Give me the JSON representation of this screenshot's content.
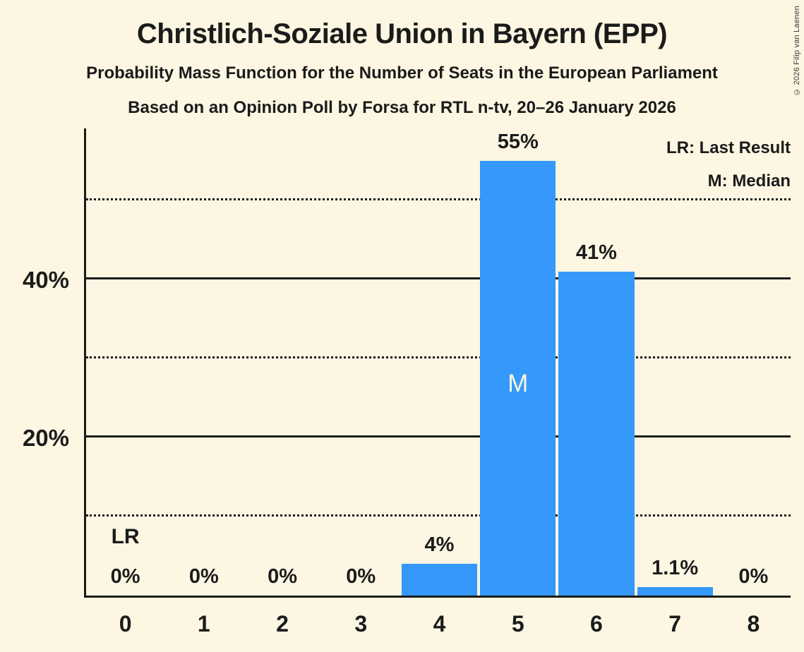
{
  "header": {
    "title": "Christlich-Soziale Union in Bayern (EPP)",
    "subtitle1": "Probability Mass Function for the Number of Seats in the European Parliament",
    "subtitle2": "Based on an Opinion Poll by Forsa for RTL n-tv, 20–26 January 2026"
  },
  "legend": {
    "lr_line": "LR: Last Result",
    "m_line": "M: Median"
  },
  "copyright": "© 2026 Filip van Laenen",
  "colors": {
    "background": "#FCF6E2",
    "bar": "#3499FA",
    "text": "#1B1B1B",
    "label_on_bar": "#FCF6E2",
    "gridline": "#1B1B1B"
  },
  "chart_data": {
    "type": "bar",
    "title": "Christlich-Soziale Union in Bayern (EPP)",
    "xlabel": "",
    "ylabel": "",
    "categories": [
      "0",
      "1",
      "2",
      "3",
      "4",
      "5",
      "6",
      "7",
      "8"
    ],
    "values": [
      0,
      0,
      0,
      0,
      4,
      55,
      41,
      1.1,
      0
    ],
    "value_labels": [
      "0%",
      "0%",
      "0%",
      "0%",
      "4%",
      "55%",
      "41%",
      "1.1%",
      "0%"
    ],
    "ylim": [
      0,
      59.4
    ],
    "yticks": [
      {
        "pct": 20,
        "label": "20%"
      },
      {
        "pct": 40,
        "label": "40%"
      }
    ],
    "gridlines_solid": [
      20,
      40
    ],
    "gridlines_dotted": [
      10,
      30,
      50
    ],
    "grid": true,
    "legend_position": "top-right",
    "annotations": {
      "last_result": {
        "seat_index": 0,
        "label": "LR"
      },
      "median": {
        "seat_index": 5,
        "label": "M"
      }
    }
  }
}
